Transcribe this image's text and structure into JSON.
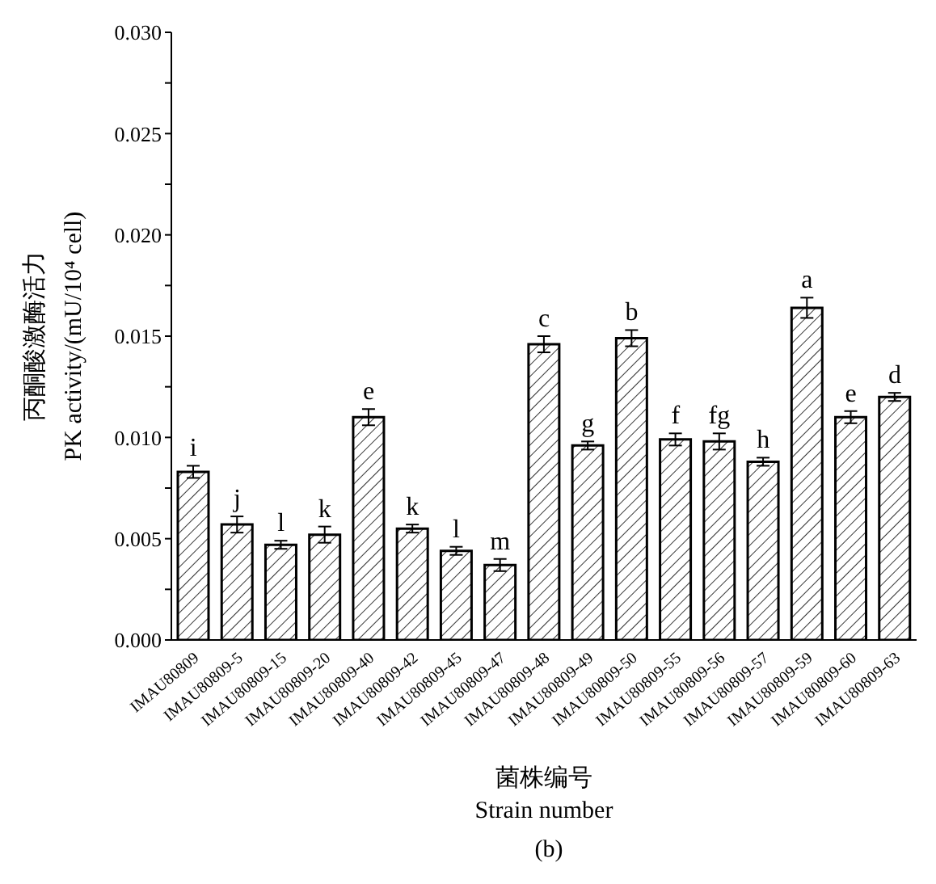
{
  "chart_data": {
    "type": "bar",
    "xlabel": "菌株编号\nStrain number",
    "ylabel": "丙酮酸激酶活力\nPK activity/(mU/10⁴ cell)",
    "categories": [
      "IMAU80809",
      "IMAU80809-5",
      "IMAU80809-15",
      "IMAU80809-20",
      "IMAU80809-40",
      "IMAU80809-42",
      "IMAU80809-45",
      "IMAU80809-47",
      "IMAU80809-48",
      "IMAU80809-49",
      "IMAU80809-50",
      "IMAU80809-55",
      "IMAU80809-56",
      "IMAU80809-57",
      "IMAU80809-59",
      "IMAU80809-60",
      "IMAU80809-63"
    ],
    "values": [
      0.0083,
      0.0057,
      0.0047,
      0.0052,
      0.011,
      0.0055,
      0.0044,
      0.0037,
      0.0146,
      0.0096,
      0.0149,
      0.0099,
      0.0098,
      0.0088,
      0.0164,
      0.011,
      0.012
    ],
    "errors": [
      0.0003,
      0.0004,
      0.0002,
      0.0004,
      0.0004,
      0.0002,
      0.0002,
      0.0003,
      0.0004,
      0.0002,
      0.0004,
      0.0003,
      0.0004,
      0.0002,
      0.0005,
      0.0003,
      0.0002
    ],
    "color": "#000000",
    "ylim": [
      0,
      0.03
    ],
    "yticks": [
      {
        "value": 0,
        "label": "0.000"
      },
      {
        "value": 0.0025,
        "label": null
      },
      {
        "value": 0.005,
        "label": "0.005"
      },
      {
        "value": 0.0075,
        "label": null
      },
      {
        "value": 0.01,
        "label": "0.010"
      },
      {
        "value": 0.0125,
        "label": null
      },
      {
        "value": 0.015,
        "label": "0.015"
      },
      {
        "value": 0.0175,
        "label": null
      },
      {
        "value": 0.02,
        "label": "0.020"
      },
      {
        "value": 0.0225,
        "label": null
      },
      {
        "value": 0.025,
        "label": "0.025"
      },
      {
        "value": 0.0275,
        "label": null
      },
      {
        "value": 0.03,
        "label": "0.030"
      }
    ],
    "grid": false,
    "legend": false,
    "annotations": [
      {
        "text": "i",
        "x": "IMAU80809",
        "y": 0.0086
      },
      {
        "text": "j",
        "x": "IMAU80809-5",
        "y": 0.0061
      },
      {
        "text": "l",
        "x": "IMAU80809-15",
        "y": 0.0049
      },
      {
        "text": "k",
        "x": "IMAU80809-20",
        "y": 0.0056
      },
      {
        "text": "e",
        "x": "IMAU80809-40",
        "y": 0.0114
      },
      {
        "text": "k",
        "x": "IMAU80809-42",
        "y": 0.0057
      },
      {
        "text": "l",
        "x": "IMAU80809-45",
        "y": 0.0046
      },
      {
        "text": "m",
        "x": "IMAU80809-47",
        "y": 0.004
      },
      {
        "text": "c",
        "x": "IMAU80809-48",
        "y": 0.015
      },
      {
        "text": "g",
        "x": "IMAU80809-49",
        "y": 0.0098
      },
      {
        "text": "b",
        "x": "IMAU80809-50",
        "y": 0.0153
      },
      {
        "text": "f",
        "x": "IMAU80809-55",
        "y": 0.0102
      },
      {
        "text": "fg",
        "x": "IMAU80809-56",
        "y": 0.0102
      },
      {
        "text": "h",
        "x": "IMAU80809-57",
        "y": 0.009
      },
      {
        "text": "a",
        "x": "IMAU80809-59",
        "y": 0.0169
      },
      {
        "text": "e",
        "x": "IMAU80809-60",
        "y": 0.0113
      },
      {
        "text": "d",
        "x": "IMAU80809-63",
        "y": 0.0122
      },
      "(b)"
    ]
  }
}
